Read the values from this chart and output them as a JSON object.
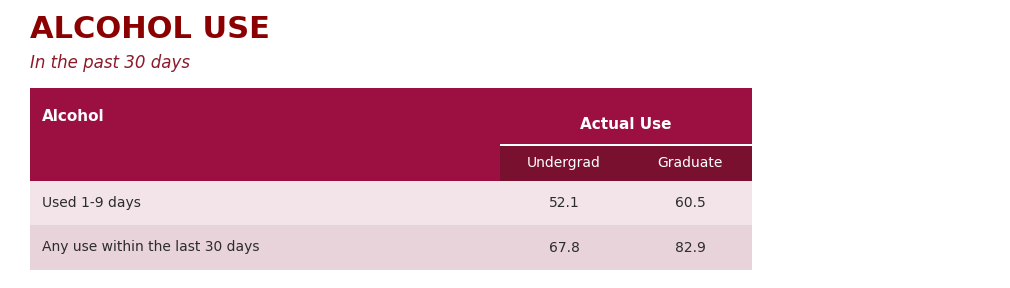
{
  "title": "ALCOHOL USE",
  "subtitle": "In the past 30 days",
  "title_color": "#8B0000",
  "subtitle_color": "#8B1A2A",
  "header_bg_color": "#9B1040",
  "subheader_bg_color": "#7A1030",
  "row1_bg_color": "#F2E4E8",
  "row2_bg_color": "#E8D3DA",
  "col_header": "Alcohol",
  "group_header": "Actual Use",
  "sub_headers": [
    "Undergrad",
    "Graduate"
  ],
  "rows": [
    {
      "label": "Used 1-9 days",
      "values": [
        "52.1",
        "60.5"
      ]
    },
    {
      "label": "Any use within the last 30 days",
      "values": [
        "67.8",
        "82.9"
      ]
    }
  ],
  "header_text_color": "#FFFFFF",
  "data_text_color": "#2C2C2C",
  "fig_bg_color": "#FFFFFF",
  "fig_w": 10.1,
  "fig_h": 2.88,
  "dpi": 100
}
